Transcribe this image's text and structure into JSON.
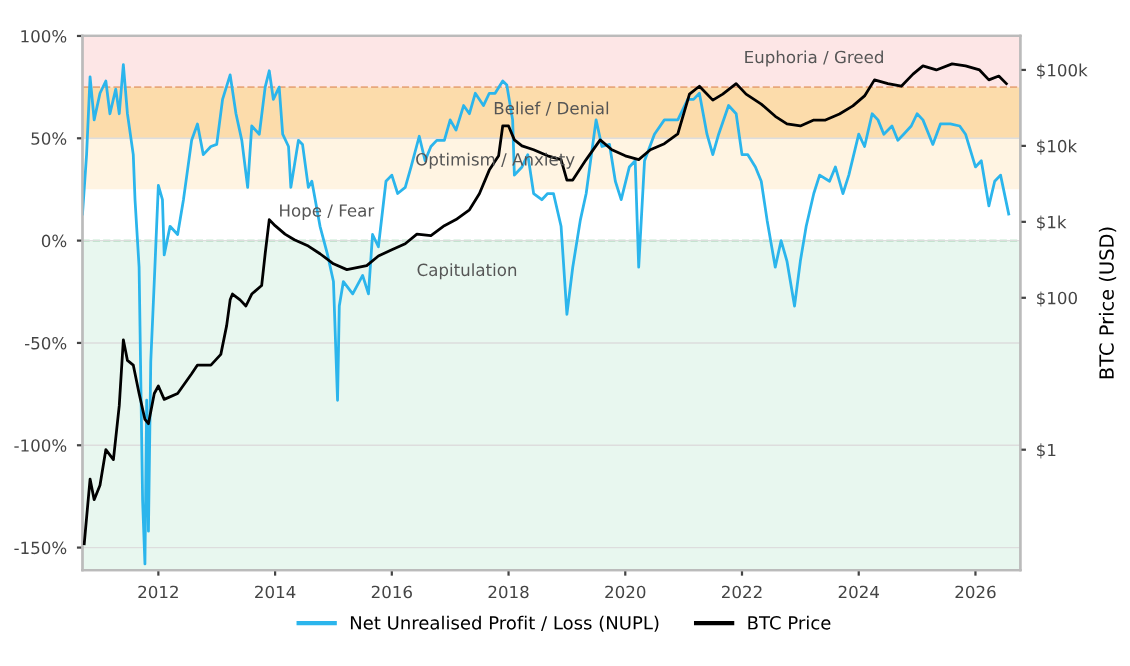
{
  "chart_data": {
    "type": "line",
    "y2label": "BTC Price (USD)",
    "xlim": [
      2010.7,
      2026.77
    ],
    "xticks": [
      2012,
      2014,
      2016,
      2018,
      2020,
      2022,
      2024,
      2026
    ],
    "ylim": [
      -161,
      100
    ],
    "yticks": [
      {
        "value": 100,
        "label": "100%"
      },
      {
        "value": 50,
        "label": "50%"
      },
      {
        "value": 0,
        "label": "0%"
      },
      {
        "value": -50,
        "label": "-50%"
      },
      {
        "value": -100,
        "label": "-100%"
      },
      {
        "value": -150,
        "label": "-150%"
      }
    ],
    "y2lim": [
      0.026,
      280000
    ],
    "y2ticks": [
      {
        "value": 1,
        "label": "$1"
      },
      {
        "value": 100,
        "label": "$100"
      },
      {
        "value": 1000,
        "label": "$1k"
      },
      {
        "value": 10000,
        "label": "$10k"
      },
      {
        "value": 100000,
        "label": "$100k"
      }
    ],
    "log": "y2",
    "grid": "y",
    "legend": "bottom",
    "marker": "none",
    "line_style": "solid",
    "bands": [
      {
        "axis": "y",
        "from": 75,
        "to": 100,
        "color": "#fde6e6",
        "label": "Euphoria / Greed"
      },
      {
        "axis": "y",
        "from": 50,
        "to": 75,
        "color": "#fcdcab",
        "label": "Belief / Denial"
      },
      {
        "axis": "y",
        "from": 25,
        "to": 50,
        "color": "#fff4e2",
        "label": "Optimism / Anxiety"
      },
      {
        "axis": "y",
        "from": 0,
        "to": 25,
        "color": "#ffffff",
        "label": "Hope / Fear"
      },
      {
        "axis": "y",
        "from": -161,
        "to": 0,
        "color": "#e8f7ef",
        "label": "Capitulation"
      }
    ],
    "ref_lines": [
      {
        "axis": "y",
        "value": 75,
        "color": "#e8a87c",
        "line_style": "dashed"
      },
      {
        "axis": "y",
        "value": 0,
        "color": "#8fd4a8",
        "line_style": "dashed"
      }
    ],
    "series": [
      {
        "name": "Net Unrealised Profit / Loss (NUPL)",
        "color": "#2bb5ec",
        "x": [
          2010.7,
          2010.77,
          2010.83,
          2010.9,
          2011.0,
          2011.1,
          2011.17,
          2011.27,
          2011.33,
          2011.4,
          2011.47,
          2011.57,
          2011.6,
          2011.67,
          2011.73,
          2011.77,
          2011.8,
          2011.83,
          2011.87,
          2011.93,
          2012.0,
          2012.07,
          2012.1,
          2012.2,
          2012.33,
          2012.43,
          2012.57,
          2012.67,
          2012.77,
          2012.9,
          2013.0,
          2013.1,
          2013.23,
          2013.33,
          2013.43,
          2013.53,
          2013.6,
          2013.73,
          2013.83,
          2013.9,
          2013.97,
          2014.07,
          2014.13,
          2014.23,
          2014.27,
          2014.4,
          2014.47,
          2014.57,
          2014.63,
          2014.77,
          2014.9,
          2015.0,
          2015.07,
          2015.1,
          2015.17,
          2015.33,
          2015.5,
          2015.6,
          2015.67,
          2015.77,
          2015.9,
          2016.0,
          2016.1,
          2016.23,
          2016.33,
          2016.47,
          2016.57,
          2016.67,
          2016.77,
          2016.9,
          2017.0,
          2017.1,
          2017.23,
          2017.33,
          2017.43,
          2017.57,
          2017.67,
          2017.77,
          2017.9,
          2017.97,
          2018.07,
          2018.1,
          2018.23,
          2018.33,
          2018.43,
          2018.57,
          2018.67,
          2018.77,
          2018.9,
          2019.0,
          2019.1,
          2019.23,
          2019.33,
          2019.5,
          2019.6,
          2019.73,
          2019.83,
          2019.93,
          2020.07,
          2020.17,
          2020.23,
          2020.33,
          2020.5,
          2020.67,
          2020.9,
          2021.07,
          2021.17,
          2021.27,
          2021.4,
          2021.5,
          2021.6,
          2021.77,
          2021.9,
          2022.0,
          2022.1,
          2022.23,
          2022.33,
          2022.43,
          2022.57,
          2022.67,
          2022.77,
          2022.9,
          2023.0,
          2023.1,
          2023.23,
          2023.33,
          2023.5,
          2023.6,
          2023.73,
          2023.83,
          2024.0,
          2024.1,
          2024.23,
          2024.33,
          2024.43,
          2024.57,
          2024.67,
          2024.77,
          2024.9,
          2025.0,
          2025.1,
          2025.27,
          2025.4,
          2025.57,
          2025.73,
          2025.83,
          2026.0,
          2026.1,
          2026.23,
          2026.33,
          2026.43,
          2026.57
        ],
        "values": [
          13,
          42,
          80,
          59,
          72,
          78,
          62,
          74,
          62,
          86,
          62,
          42,
          20,
          -13,
          -127,
          -158,
          -78,
          -142,
          -59,
          -20,
          27,
          20,
          -7,
          7,
          3,
          20,
          49,
          57,
          42,
          46,
          47,
          69,
          81,
          62,
          49,
          26,
          56,
          52,
          75,
          83,
          69,
          75,
          52,
          46,
          26,
          49,
          47,
          26,
          29,
          7,
          -7,
          -20,
          -78,
          -32,
          -20,
          -26,
          -17,
          -26,
          3,
          -3,
          29,
          32,
          23,
          26,
          36,
          51,
          39,
          46,
          49,
          49,
          59,
          54,
          66,
          62,
          72,
          66,
          72,
          72,
          78,
          76,
          59,
          32,
          36,
          42,
          23,
          20,
          23,
          23,
          7,
          -36,
          -13,
          10,
          23,
          59,
          46,
          47,
          29,
          20,
          36,
          39,
          -13,
          39,
          52,
          59,
          59,
          69,
          69,
          72,
          52,
          42,
          52,
          66,
          62,
          42,
          42,
          36,
          29,
          10,
          -13,
          0,
          -10,
          -32,
          -10,
          7,
          23,
          32,
          29,
          36,
          23,
          32,
          52,
          46,
          62,
          59,
          52,
          56,
          49,
          52,
          56,
          62,
          59,
          47,
          57,
          57,
          56,
          52,
          36,
          39,
          17,
          29,
          32,
          13
        ]
      },
      {
        "name": "BTC Price",
        "color": "#000000",
        "axis": "y2",
        "x": [
          2010.73,
          2010.83,
          2010.9,
          2011.0,
          2011.1,
          2011.23,
          2011.33,
          2011.4,
          2011.47,
          2011.57,
          2011.67,
          2011.77,
          2011.83,
          2011.93,
          2012.0,
          2012.1,
          2012.33,
          2012.57,
          2012.67,
          2012.9,
          2013.07,
          2013.17,
          2013.23,
          2013.27,
          2013.4,
          2013.5,
          2013.6,
          2013.77,
          2013.83,
          2013.9,
          2014.0,
          2014.17,
          2014.33,
          2014.57,
          2014.77,
          2015.0,
          2015.23,
          2015.57,
          2015.77,
          2016.0,
          2016.23,
          2016.43,
          2016.67,
          2016.9,
          2017.1,
          2017.33,
          2017.5,
          2017.67,
          2017.83,
          2017.9,
          2018.0,
          2018.1,
          2018.23,
          2018.43,
          2018.67,
          2018.9,
          2019.0,
          2019.1,
          2019.33,
          2019.57,
          2019.77,
          2020.0,
          2020.23,
          2020.43,
          2020.67,
          2020.9,
          2021.1,
          2021.27,
          2021.5,
          2021.67,
          2021.9,
          2022.07,
          2022.33,
          2022.57,
          2022.77,
          2023.0,
          2023.23,
          2023.43,
          2023.67,
          2023.9,
          2024.1,
          2024.27,
          2024.5,
          2024.73,
          2024.93,
          2025.1,
          2025.33,
          2025.6,
          2025.83,
          2026.07,
          2026.23,
          2026.4,
          2026.53
        ],
        "values": [
          0.058,
          0.41,
          0.22,
          0.34,
          1.0,
          0.74,
          3.8,
          28,
          15,
          13,
          5.5,
          2.5,
          2.2,
          5.5,
          6.9,
          4.6,
          5.5,
          10,
          13,
          13,
          18,
          43,
          94,
          112,
          94,
          78,
          112,
          145,
          380,
          1070,
          890,
          690,
          580,
          480,
          380,
          280,
          235,
          265,
          355,
          430,
          515,
          690,
          660,
          890,
          1070,
          1440,
          2340,
          4800,
          7400,
          18300,
          18300,
          12000,
          10000,
          8900,
          7400,
          6600,
          3550,
          3550,
          6600,
          12000,
          8900,
          7400,
          6600,
          8900,
          10700,
          14400,
          48000,
          61000,
          40000,
          48000,
          66000,
          48000,
          35500,
          24500,
          19500,
          18300,
          21900,
          21900,
          26300,
          33600,
          45500,
          74000,
          66000,
          61000,
          88000,
          113000,
          100000,
          120000,
          113000,
          100000,
          74000,
          83000,
          66000
        ]
      }
    ]
  }
}
